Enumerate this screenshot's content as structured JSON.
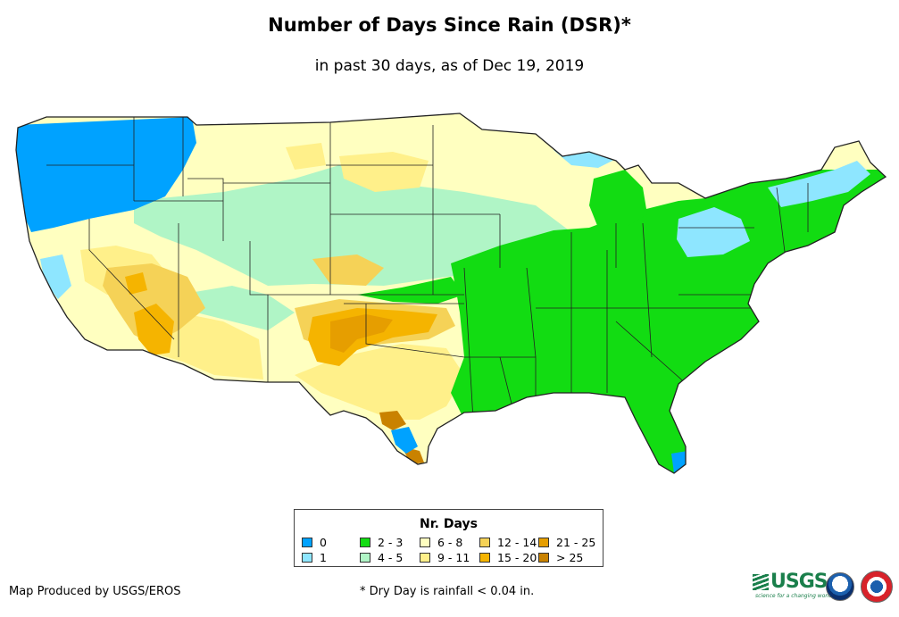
{
  "title": "Number of Days Since Rain (DSR)*",
  "subtitle": "in past 30 days, as of Dec 19, 2019",
  "legend": {
    "title": "Nr. Days",
    "items": [
      {
        "label": "0",
        "color": "#00a2ff"
      },
      {
        "label": "1",
        "color": "#8ee6ff"
      },
      {
        "label": "2 - 3",
        "color": "#12dc12"
      },
      {
        "label": "4 - 5",
        "color": "#b0f5c6"
      },
      {
        "label": "6 - 8",
        "color": "#ffffc0"
      },
      {
        "label": "9 - 11",
        "color": "#fff08a"
      },
      {
        "label": "12 - 14",
        "color": "#f5d257"
      },
      {
        "label": "15 - 20",
        "color": "#f5b400"
      },
      {
        "label": "21 - 25",
        "color": "#e69e00"
      },
      {
        "label": "> 25",
        "color": "#c98200"
      }
    ]
  },
  "footer": {
    "credit": "Map Produced by USGS/EROS",
    "note": "* Dry Day is rainfall < 0.04 in."
  },
  "logos": {
    "usgs": "USGS",
    "usgs_tagline": "science for a changing world"
  }
}
